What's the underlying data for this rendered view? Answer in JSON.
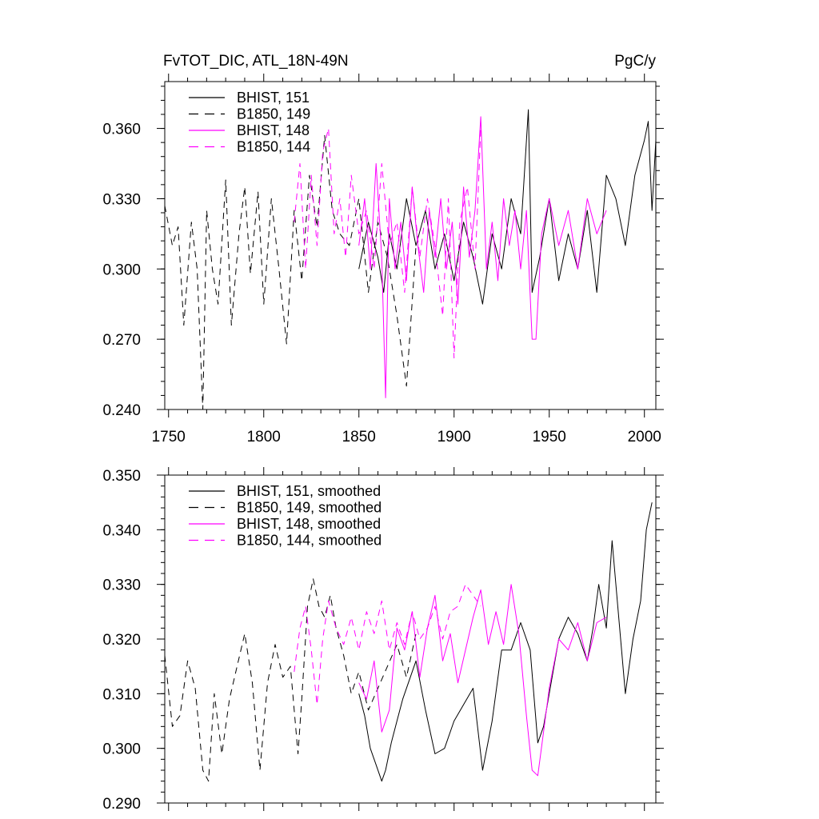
{
  "chart_data": [
    {
      "type": "line",
      "title": "FvTOT_DIC, ATL_18N-49N",
      "units": "PgC/y",
      "xlim": [
        1748,
        2006
      ],
      "ylim": [
        0.24,
        0.38
      ],
      "xticks": [
        1750,
        1800,
        1850,
        1900,
        1950,
        2000
      ],
      "xtick_labels": [
        "1750",
        "1800",
        "1850",
        "1900",
        "1950",
        "2000"
      ],
      "yticks": [
        0.24,
        0.27,
        0.3,
        0.33,
        0.36
      ],
      "ytick_labels": [
        "0.240",
        "0.270",
        "0.300",
        "0.330",
        "0.360"
      ],
      "legend_position": "top-left",
      "series": [
        {
          "name": "BHIST, 151",
          "color": "#000000",
          "dash": "solid",
          "x": [
            1850,
            1855,
            1860,
            1863,
            1866,
            1870,
            1875,
            1880,
            1885,
            1890,
            1895,
            1900,
            1905,
            1910,
            1915,
            1920,
            1925,
            1930,
            1935,
            1939,
            1941,
            1945,
            1950,
            1955,
            1960,
            1965,
            1970,
            1975,
            1980,
            1985,
            1990,
            1995,
            2000,
            2002,
            2004,
            2006
          ],
          "y": [
            0.3,
            0.32,
            0.305,
            0.29,
            0.315,
            0.3,
            0.33,
            0.31,
            0.325,
            0.3,
            0.315,
            0.295,
            0.32,
            0.305,
            0.285,
            0.315,
            0.3,
            0.33,
            0.315,
            0.368,
            0.29,
            0.305,
            0.33,
            0.295,
            0.315,
            0.3,
            0.325,
            0.29,
            0.34,
            0.33,
            0.31,
            0.34,
            0.355,
            0.363,
            0.325,
            0.355
          ]
        },
        {
          "name": "B1850, 149",
          "color": "#000000",
          "dash": "8,6",
          "x": [
            1748,
            1752,
            1755,
            1758,
            1762,
            1765,
            1768,
            1770,
            1773,
            1776,
            1780,
            1783,
            1787,
            1790,
            1793,
            1797,
            1800,
            1804,
            1808,
            1812,
            1816,
            1820,
            1824,
            1828,
            1832,
            1836,
            1840,
            1845,
            1850,
            1855,
            1860,
            1865,
            1870,
            1875,
            1880
          ],
          "y": [
            0.327,
            0.31,
            0.318,
            0.276,
            0.32,
            0.3,
            0.24,
            0.325,
            0.3,
            0.285,
            0.338,
            0.276,
            0.315,
            0.335,
            0.298,
            0.333,
            0.285,
            0.33,
            0.3,
            0.268,
            0.325,
            0.295,
            0.34,
            0.318,
            0.357,
            0.325,
            0.315,
            0.31,
            0.33,
            0.29,
            0.32,
            0.305,
            0.28,
            0.25,
            0.31
          ]
        },
        {
          "name": "BHIST, 148",
          "color": "#ff00ff",
          "dash": "solid",
          "x": [
            1850,
            1853,
            1856,
            1859,
            1862,
            1864,
            1866,
            1869,
            1872,
            1875,
            1878,
            1881,
            1884,
            1887,
            1890,
            1893,
            1896,
            1899,
            1902,
            1905,
            1908,
            1911,
            1914,
            1917,
            1920,
            1923,
            1926,
            1929,
            1932,
            1935,
            1938,
            1941,
            1943,
            1946,
            1950,
            1955,
            1960,
            1965,
            1970,
            1975,
            1980
          ],
          "y": [
            0.31,
            0.33,
            0.3,
            0.345,
            0.305,
            0.245,
            0.33,
            0.3,
            0.32,
            0.295,
            0.335,
            0.31,
            0.29,
            0.325,
            0.305,
            0.33,
            0.3,
            0.32,
            0.285,
            0.335,
            0.305,
            0.325,
            0.365,
            0.3,
            0.32,
            0.295,
            0.33,
            0.31,
            0.325,
            0.3,
            0.325,
            0.27,
            0.27,
            0.315,
            0.33,
            0.31,
            0.325,
            0.3,
            0.33,
            0.315,
            0.325
          ]
        },
        {
          "name": "B1850, 144",
          "color": "#ff00ff",
          "dash": "8,6",
          "x": [
            1816,
            1819,
            1822,
            1825,
            1828,
            1831,
            1834,
            1837,
            1840,
            1843,
            1846,
            1850,
            1854,
            1858,
            1862,
            1866,
            1870,
            1874,
            1878,
            1882,
            1886,
            1890,
            1894,
            1897,
            1900,
            1903,
            1907,
            1911,
            1914
          ],
          "y": [
            0.32,
            0.345,
            0.3,
            0.34,
            0.31,
            0.35,
            0.36,
            0.315,
            0.33,
            0.305,
            0.34,
            0.315,
            0.325,
            0.3,
            0.345,
            0.31,
            0.32,
            0.29,
            0.335,
            0.305,
            0.33,
            0.31,
            0.28,
            0.33,
            0.262,
            0.32,
            0.335,
            0.3,
            0.36
          ]
        }
      ]
    },
    {
      "type": "line",
      "xlim": [
        1748,
        2006
      ],
      "ylim": [
        0.29,
        0.35
      ],
      "yticks": [
        0.29,
        0.3,
        0.31,
        0.32,
        0.33,
        0.34,
        0.35
      ],
      "ytick_labels": [
        "0.290",
        "0.300",
        "0.310",
        "0.320",
        "0.330",
        "0.340",
        "0.350"
      ],
      "legend_position": "top-left",
      "series": [
        {
          "name": "BHIST, 151, smoothed",
          "color": "#000000",
          "dash": "solid",
          "x": [
            1850,
            1853,
            1856,
            1859,
            1862,
            1864,
            1867,
            1870,
            1873,
            1876,
            1880,
            1885,
            1890,
            1895,
            1900,
            1905,
            1910,
            1915,
            1920,
            1925,
            1930,
            1935,
            1940,
            1944,
            1947,
            1950,
            1955,
            1960,
            1965,
            1970,
            1973,
            1976,
            1980,
            1983,
            1986,
            1990,
            1994,
            1998,
            2001,
            2004
          ],
          "y": [
            0.31,
            0.306,
            0.3,
            0.297,
            0.294,
            0.296,
            0.301,
            0.305,
            0.309,
            0.312,
            0.316,
            0.307,
            0.299,
            0.3,
            0.305,
            0.308,
            0.311,
            0.296,
            0.305,
            0.318,
            0.318,
            0.323,
            0.318,
            0.301,
            0.304,
            0.31,
            0.32,
            0.324,
            0.321,
            0.316,
            0.322,
            0.33,
            0.322,
            0.338,
            0.326,
            0.31,
            0.32,
            0.327,
            0.34,
            0.345
          ]
        },
        {
          "name": "B1850, 149, smoothed",
          "color": "#000000",
          "dash": "8,6",
          "x": [
            1748,
            1752,
            1756,
            1760,
            1764,
            1768,
            1771,
            1774,
            1778,
            1782,
            1786,
            1790,
            1794,
            1798,
            1802,
            1806,
            1810,
            1814,
            1818,
            1820,
            1823,
            1826,
            1829,
            1832,
            1835,
            1838,
            1842,
            1846,
            1850,
            1855,
            1860,
            1865,
            1870,
            1875,
            1880
          ],
          "y": [
            0.317,
            0.304,
            0.306,
            0.316,
            0.311,
            0.296,
            0.294,
            0.31,
            0.299,
            0.309,
            0.315,
            0.321,
            0.312,
            0.296,
            0.312,
            0.319,
            0.313,
            0.315,
            0.299,
            0.309,
            0.326,
            0.331,
            0.326,
            0.324,
            0.328,
            0.322,
            0.317,
            0.31,
            0.314,
            0.307,
            0.311,
            0.315,
            0.319,
            0.313,
            0.321
          ]
        },
        {
          "name": "BHIST, 148, smoothed",
          "color": "#ff00ff",
          "dash": "solid",
          "x": [
            1850,
            1854,
            1858,
            1862,
            1866,
            1870,
            1874,
            1878,
            1882,
            1886,
            1890,
            1894,
            1898,
            1902,
            1906,
            1910,
            1914,
            1918,
            1922,
            1926,
            1930,
            1934,
            1938,
            1941,
            1944,
            1947,
            1950,
            1955,
            1960,
            1965,
            1970,
            1975,
            1980
          ],
          "y": [
            0.312,
            0.309,
            0.316,
            0.303,
            0.307,
            0.322,
            0.318,
            0.325,
            0.313,
            0.322,
            0.328,
            0.316,
            0.321,
            0.312,
            0.318,
            0.324,
            0.329,
            0.319,
            0.325,
            0.319,
            0.33,
            0.321,
            0.306,
            0.296,
            0.295,
            0.303,
            0.311,
            0.32,
            0.318,
            0.323,
            0.316,
            0.323,
            0.324
          ]
        },
        {
          "name": "B1850, 144, smoothed",
          "color": "#ff00ff",
          "dash": "8,6",
          "x": [
            1816,
            1819,
            1822,
            1825,
            1828,
            1831,
            1834,
            1838,
            1842,
            1846,
            1850,
            1854,
            1858,
            1862,
            1866,
            1870,
            1874,
            1878,
            1882,
            1886,
            1890,
            1894,
            1898,
            1902,
            1906,
            1910,
            1914
          ],
          "y": [
            0.314,
            0.322,
            0.326,
            0.318,
            0.308,
            0.32,
            0.327,
            0.322,
            0.319,
            0.324,
            0.318,
            0.325,
            0.321,
            0.327,
            0.318,
            0.323,
            0.319,
            0.325,
            0.32,
            0.322,
            0.326,
            0.32,
            0.325,
            0.326,
            0.33,
            0.328,
            0.326
          ]
        }
      ]
    }
  ]
}
